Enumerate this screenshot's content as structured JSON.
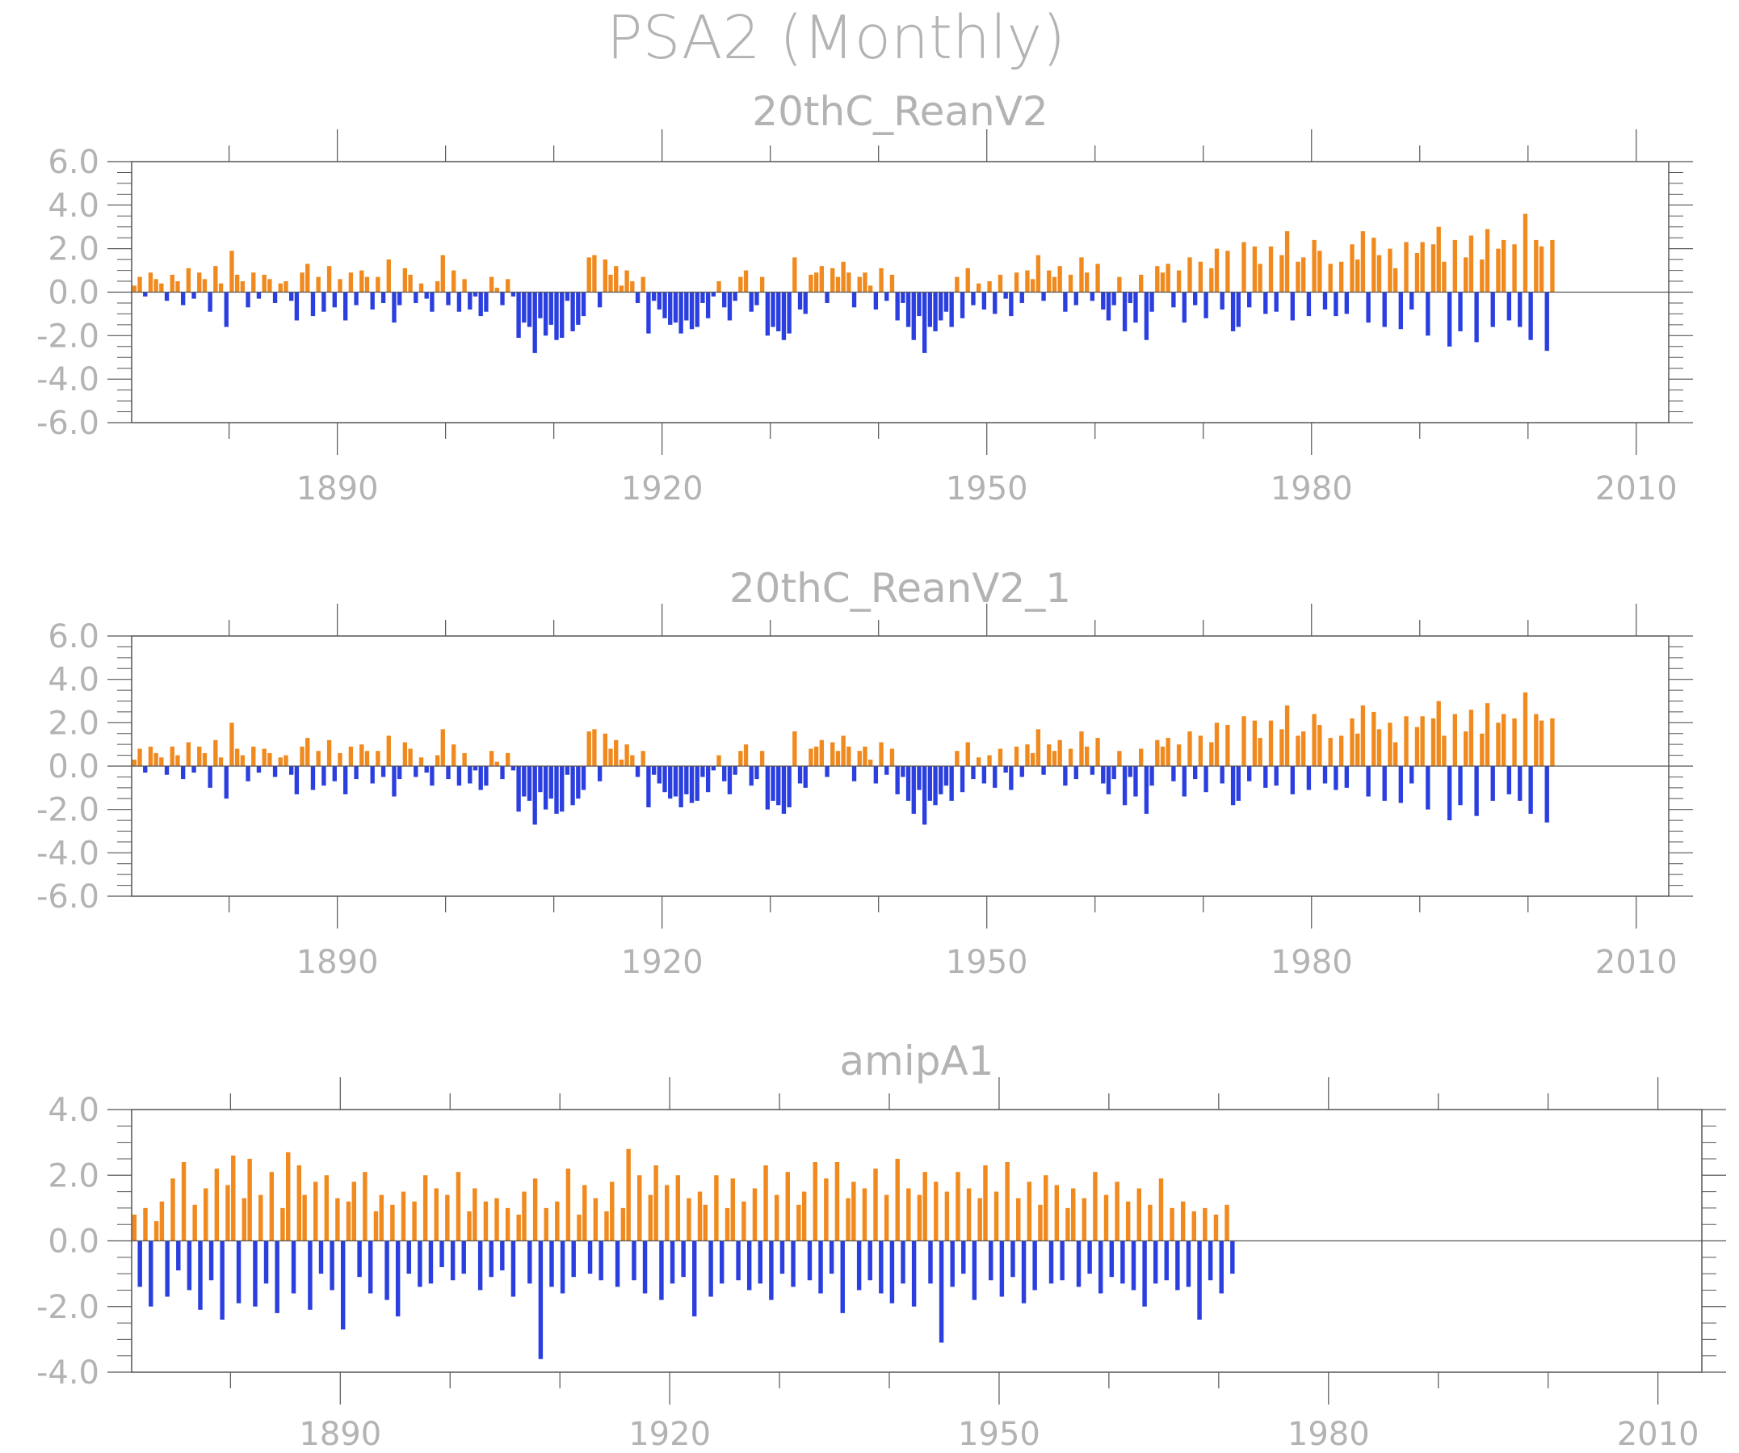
{
  "title": "PSA2 (Monthly)",
  "colors": {
    "positive": "#f08a1e",
    "negative": "#2b3fe0",
    "axis": "#555555",
    "text": "#b3b3b3"
  },
  "chart_data": [
    {
      "type": "bar",
      "title": "20thC_ReanV2",
      "ylim": [
        -6.0,
        6.0
      ],
      "yticks": [
        "-6.0",
        "-4.0",
        "-2.0",
        "0.0",
        "2.0",
        "4.0",
        "6.0"
      ],
      "xlim": [
        1871,
        2013
      ],
      "xticks": [
        "1890",
        "1920",
        "1950",
        "1980",
        "2010"
      ],
      "x_start": 1871,
      "x_step": 0.5,
      "values": [
        0.3,
        0.7,
        -0.2,
        0.9,
        0.6,
        0.4,
        -0.4,
        0.8,
        0.5,
        -0.6,
        1.1,
        -0.3,
        0.9,
        0.6,
        -0.9,
        1.2,
        0.4,
        -1.6,
        1.9,
        0.8,
        0.5,
        -0.7,
        0.9,
        -0.3,
        0.8,
        0.6,
        -0.5,
        0.4,
        0.5,
        -0.4,
        -1.3,
        0.9,
        1.3,
        -1.1,
        0.7,
        -0.9,
        1.2,
        -0.7,
        0.6,
        -1.3,
        0.9,
        -0.6,
        1.0,
        0.7,
        -0.8,
        0.7,
        -0.5,
        1.5,
        -1.4,
        -0.6,
        1.1,
        0.8,
        -0.5,
        0.4,
        -0.3,
        -0.9,
        0.5,
        1.7,
        -0.6,
        1.0,
        -0.9,
        0.6,
        -0.8,
        -0.2,
        -1.1,
        -0.9,
        0.7,
        0.2,
        -0.6,
        0.6,
        -0.2,
        -2.1,
        -1.4,
        -1.6,
        -2.8,
        -1.2,
        -2.0,
        -1.5,
        -2.2,
        -2.1,
        -0.4,
        -1.8,
        -1.5,
        -1.1,
        1.6,
        1.7,
        -0.7,
        1.5,
        0.8,
        1.2,
        0.3,
        1.0,
        0.5,
        -0.5,
        0.7,
        -1.9,
        -0.4,
        -0.8,
        -1.2,
        -1.5,
        -1.4,
        -1.9,
        -1.3,
        -1.7,
        -1.6,
        -0.5,
        -1.2,
        -0.2,
        0.5,
        -0.7,
        -1.3,
        -0.4,
        0.7,
        1.0,
        -0.9,
        -0.6,
        0.7,
        -2.0,
        -1.6,
        -1.8,
        -2.2,
        -1.9,
        1.6,
        -0.8,
        -1.0,
        0.8,
        0.9,
        1.2,
        -0.5,
        1.1,
        0.7,
        1.4,
        0.9,
        -0.7,
        0.7,
        0.9,
        0.3,
        -0.8,
        1.1,
        -0.4,
        0.8,
        -1.3,
        -0.5,
        -1.6,
        -2.2,
        -1.1,
        -2.8,
        -1.6,
        -1.8,
        -1.3,
        -0.9,
        -1.6,
        0.7,
        -1.2,
        1.1,
        -0.6,
        0.4,
        -0.8,
        0.5,
        -1.0,
        0.8,
        -0.3,
        -1.1,
        0.9,
        -0.5,
        1.0,
        0.6,
        1.7,
        -0.4,
        1.0,
        0.7,
        1.2,
        -0.9,
        0.8,
        -0.6,
        1.6,
        0.9,
        -0.4,
        1.3,
        -0.8,
        -1.3,
        -0.6,
        0.7,
        -1.8,
        -0.5,
        -1.4,
        0.8,
        -2.2,
        -0.9,
        1.2,
        0.9,
        1.3,
        -0.7,
        1.0,
        -1.4,
        1.6,
        -0.6,
        1.4,
        -1.2,
        1.1,
        2.0,
        -0.8,
        1.9,
        -1.8,
        -1.6,
        2.3,
        -0.7,
        2.1,
        1.3,
        -1.0,
        2.1,
        -0.9,
        1.7,
        2.8,
        -1.3,
        1.4,
        1.6,
        -1.1,
        2.4,
        1.9,
        -0.8,
        1.3,
        -1.1,
        1.4,
        -1.0,
        2.2,
        1.5,
        2.8,
        -1.4,
        2.5,
        1.7,
        -1.6,
        2.0,
        1.1,
        -1.7,
        2.3,
        -0.8,
        1.8,
        2.3,
        -2.0,
        2.2,
        3.0,
        1.4,
        -2.5,
        2.4,
        -1.8,
        1.6,
        2.6,
        -2.3,
        1.5,
        2.9,
        -1.6,
        2.0,
        2.4,
        -1.3,
        2.2,
        -1.6,
        3.6,
        -2.2,
        2.4,
        2.1,
        -2.7,
        2.4
      ]
    },
    {
      "type": "bar",
      "title": "20thC_ReanV2_1",
      "ylim": [
        -6.0,
        6.0
      ],
      "yticks": [
        "-6.0",
        "-4.0",
        "-2.0",
        "0.0",
        "2.0",
        "4.0",
        "6.0"
      ],
      "xlim": [
        1871,
        2013
      ],
      "xticks": [
        "1890",
        "1920",
        "1950",
        "1980",
        "2010"
      ],
      "x_start": 1871,
      "x_step": 0.5,
      "values": [
        0.3,
        0.8,
        -0.3,
        0.9,
        0.6,
        0.4,
        -0.4,
        0.9,
        0.5,
        -0.6,
        1.1,
        -0.3,
        0.9,
        0.6,
        -1.0,
        1.2,
        0.4,
        -1.5,
        2.0,
        0.8,
        0.5,
        -0.7,
        0.9,
        -0.3,
        0.8,
        0.6,
        -0.5,
        0.4,
        0.5,
        -0.4,
        -1.3,
        0.9,
        1.3,
        -1.1,
        0.7,
        -0.9,
        1.2,
        -0.7,
        0.6,
        -1.3,
        0.9,
        -0.6,
        1.0,
        0.7,
        -0.8,
        0.7,
        -0.5,
        1.4,
        -1.4,
        -0.6,
        1.1,
        0.8,
        -0.5,
        0.4,
        -0.3,
        -0.9,
        0.5,
        1.7,
        -0.6,
        1.0,
        -0.9,
        0.6,
        -0.8,
        -0.2,
        -1.1,
        -0.9,
        0.7,
        0.2,
        -0.6,
        0.6,
        -0.2,
        -2.1,
        -1.4,
        -1.6,
        -2.7,
        -1.2,
        -2.0,
        -1.5,
        -2.2,
        -2.1,
        -0.4,
        -1.8,
        -1.5,
        -1.1,
        1.6,
        1.7,
        -0.7,
        1.5,
        0.8,
        1.2,
        0.3,
        1.0,
        0.5,
        -0.5,
        0.7,
        -1.9,
        -0.4,
        -0.8,
        -1.2,
        -1.5,
        -1.4,
        -1.9,
        -1.3,
        -1.7,
        -1.6,
        -0.5,
        -1.2,
        -0.2,
        0.5,
        -0.7,
        -1.3,
        -0.4,
        0.7,
        1.0,
        -0.9,
        -0.6,
        0.7,
        -2.0,
        -1.6,
        -1.8,
        -2.2,
        -1.9,
        1.6,
        -0.8,
        -1.0,
        0.8,
        0.9,
        1.2,
        -0.5,
        1.1,
        0.7,
        1.4,
        0.9,
        -0.7,
        0.7,
        0.9,
        0.3,
        -0.8,
        1.1,
        -0.4,
        0.8,
        -1.3,
        -0.5,
        -1.6,
        -2.2,
        -1.1,
        -2.7,
        -1.6,
        -1.8,
        -1.3,
        -0.9,
        -1.6,
        0.7,
        -1.2,
        1.1,
        -0.6,
        0.4,
        -0.8,
        0.5,
        -1.0,
        0.8,
        -0.3,
        -1.1,
        0.9,
        -0.5,
        1.0,
        0.6,
        1.7,
        -0.4,
        1.0,
        0.7,
        1.2,
        -0.9,
        0.8,
        -0.6,
        1.6,
        0.9,
        -0.4,
        1.3,
        -0.8,
        -1.3,
        -0.6,
        0.7,
        -1.8,
        -0.5,
        -1.4,
        0.8,
        -2.2,
        -0.9,
        1.2,
        0.9,
        1.3,
        -0.7,
        1.0,
        -1.4,
        1.6,
        -0.6,
        1.4,
        -1.2,
        1.1,
        2.0,
        -0.8,
        1.9,
        -1.8,
        -1.6,
        2.3,
        -0.7,
        2.1,
        1.3,
        -1.0,
        2.1,
        -0.9,
        1.7,
        2.8,
        -1.3,
        1.4,
        1.6,
        -1.1,
        2.4,
        1.9,
        -0.8,
        1.3,
        -1.1,
        1.4,
        -1.0,
        2.2,
        1.5,
        2.8,
        -1.4,
        2.5,
        1.7,
        -1.6,
        2.0,
        1.1,
        -1.7,
        2.3,
        -0.8,
        1.8,
        2.3,
        -2.0,
        2.2,
        3.0,
        1.4,
        -2.5,
        2.4,
        -1.8,
        1.6,
        2.6,
        -2.3,
        1.5,
        2.9,
        -1.6,
        2.0,
        2.4,
        -1.3,
        2.2,
        -1.6,
        3.4,
        -2.2,
        2.4,
        2.1,
        -2.6,
        2.2
      ]
    },
    {
      "type": "bar",
      "title": "amipA1",
      "ylim": [
        -4.0,
        4.0
      ],
      "yticks": [
        "-4.0",
        "-2.0",
        "0.0",
        "2.0",
        "4.0"
      ],
      "xlim": [
        1871,
        2014
      ],
      "xticks": [
        "1890",
        "1920",
        "1950",
        "1980",
        "2010"
      ],
      "x_start": 1871,
      "x_step": 0.5,
      "values": [
        0.8,
        -1.4,
        1.0,
        -2.0,
        0.6,
        1.2,
        -1.7,
        1.9,
        -0.9,
        2.4,
        -1.5,
        1.1,
        -2.1,
        1.6,
        -1.2,
        2.2,
        -2.4,
        1.7,
        2.6,
        -1.9,
        1.3,
        2.5,
        -2.0,
        1.4,
        -1.3,
        2.1,
        -2.2,
        1.0,
        2.7,
        -1.6,
        2.3,
        1.4,
        -2.1,
        1.8,
        -1.0,
        2.0,
        -1.5,
        1.3,
        -2.7,
        1.2,
        1.8,
        -1.1,
        2.1,
        -1.6,
        0.9,
        1.4,
        -1.8,
        1.1,
        -2.3,
        1.5,
        -1.0,
        1.2,
        -1.4,
        2.0,
        -1.3,
        1.6,
        -0.8,
        1.4,
        -1.2,
        2.1,
        -1.0,
        0.9,
        1.6,
        -1.5,
        1.2,
        -1.1,
        1.3,
        -0.9,
        1.0,
        -1.7,
        0.8,
        1.5,
        -1.3,
        1.9,
        -3.6,
        1.0,
        -1.4,
        1.2,
        -1.6,
        2.2,
        -1.1,
        0.8,
        1.7,
        -1.0,
        1.3,
        -1.2,
        0.9,
        1.8,
        -1.4,
        1.0,
        2.8,
        -1.2,
        2.0,
        -1.6,
        1.4,
        2.3,
        -1.8,
        1.7,
        -1.3,
        2.0,
        -1.1,
        1.3,
        -2.3,
        1.5,
        1.1,
        -1.7,
        2.0,
        -1.3,
        1.0,
        1.9,
        -1.2,
        1.2,
        -1.5,
        1.6,
        -1.3,
        2.3,
        -1.8,
        1.4,
        -1.0,
        2.1,
        -1.4,
        1.1,
        1.5,
        -1.2,
        2.4,
        -1.6,
        1.9,
        -1.0,
        2.4,
        -2.2,
        1.3,
        1.8,
        -1.5,
        1.6,
        -1.2,
        2.2,
        -1.6,
        1.4,
        -1.9,
        2.5,
        -1.3,
        1.6,
        -2.0,
        1.4,
        2.1,
        -1.3,
        1.8,
        -3.1,
        1.5,
        -1.4,
        2.1,
        -1.0,
        1.6,
        -1.8,
        1.3,
        2.3,
        -1.2,
        1.5,
        -1.7,
        2.4,
        -1.1,
        1.3,
        -1.9,
        1.8,
        -1.5,
        1.1,
        2.0,
        -1.3,
        1.7,
        -1.2,
        1.0,
        1.6,
        -1.4,
        1.3,
        -1.0,
        2.1,
        -1.6,
        1.4,
        -1.1,
        1.8,
        -1.3,
        1.2,
        -1.5,
        1.6,
        -2.0,
        1.1,
        -1.3,
        1.9,
        -1.2,
        1.0,
        -1.5,
        1.2,
        -1.4,
        0.9,
        -2.4,
        1.0,
        -1.2,
        0.8,
        -1.6,
        1.1,
        -1.0
      ]
    }
  ]
}
